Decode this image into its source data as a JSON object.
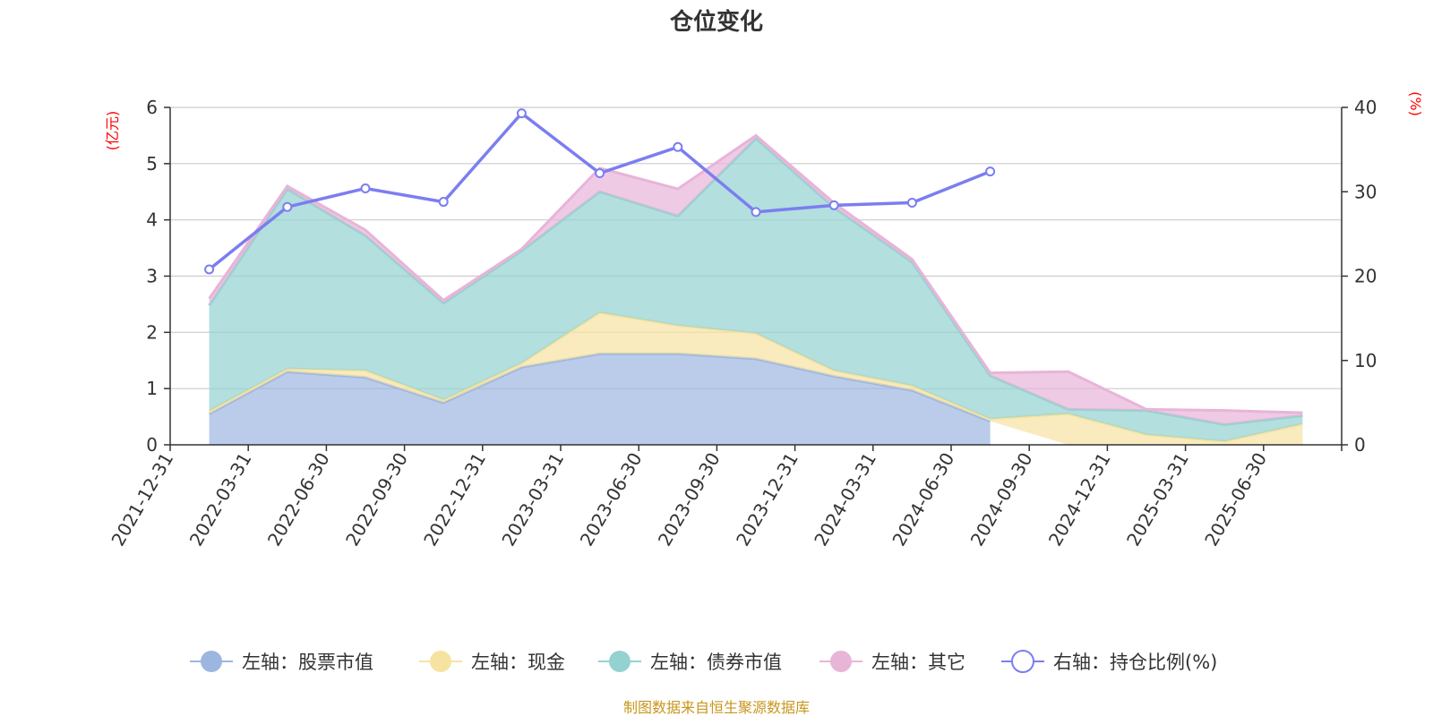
{
  "chart_data": {
    "type": "area",
    "title": "仓位变化",
    "left_axis_unit": "(亿元)",
    "right_axis_unit": "(%)",
    "categories": [
      "2021-12-31",
      "2022-03-31",
      "2022-06-30",
      "2022-09-30",
      "2022-12-31",
      "2023-03-31",
      "2023-06-30",
      "2023-09-30",
      "2023-12-31",
      "2024-03-31",
      "2024-06-30",
      "2024-09-30",
      "2024-12-31",
      "2025-03-31",
      "2025-06-30"
    ],
    "ylim_left": [
      0,
      6
    ],
    "yticks_left": [
      "0",
      "1",
      "2",
      "3",
      "4",
      "5",
      "6"
    ],
    "ylim_right": [
      0,
      40
    ],
    "yticks_right": [
      "0",
      "10",
      "20",
      "30",
      "40"
    ],
    "stacked": true,
    "grid": true,
    "legend_position": "bottom",
    "series": [
      {
        "name": "左轴：股票市值",
        "axis": "left",
        "color": "#9db6e0",
        "values": [
          0.55,
          1.3,
          1.2,
          0.75,
          1.38,
          1.62,
          1.62,
          1.53,
          1.22,
          0.97,
          0.42,
          null,
          null,
          null,
          null
        ]
      },
      {
        "name": "左轴：现金",
        "axis": "left",
        "color": "#f7e3a1",
        "values": [
          0.05,
          0.05,
          0.12,
          0.05,
          0.07,
          0.73,
          0.5,
          0.45,
          0.1,
          0.08,
          0.04,
          0.55,
          0.18,
          0.06,
          0.37
        ]
      },
      {
        "name": "左轴：债券市值",
        "axis": "left",
        "color": "#93d2d1",
        "values": [
          1.88,
          3.2,
          2.4,
          1.72,
          2.0,
          2.15,
          1.95,
          3.47,
          2.9,
          2.2,
          0.77,
          0.08,
          0.43,
          0.3,
          0.15
        ]
      },
      {
        "name": "左轴：其它",
        "axis": "left",
        "color": "#e8b4d8",
        "values": [
          0.12,
          0.05,
          0.1,
          0.05,
          0.03,
          0.42,
          0.48,
          0.05,
          0.08,
          0.05,
          0.05,
          0.67,
          0.02,
          0.25,
          0.05
        ]
      },
      {
        "name": "右轴：持仓比例(%)",
        "axis": "right",
        "type": "line",
        "color": "#7b7ef0",
        "values": [
          20.8,
          28.2,
          30.4,
          28.8,
          39.3,
          32.2,
          35.3,
          27.6,
          28.4,
          28.7,
          32.4,
          null,
          null,
          null,
          null
        ]
      }
    ]
  },
  "footer": "制图数据来自恒生聚源数据库"
}
